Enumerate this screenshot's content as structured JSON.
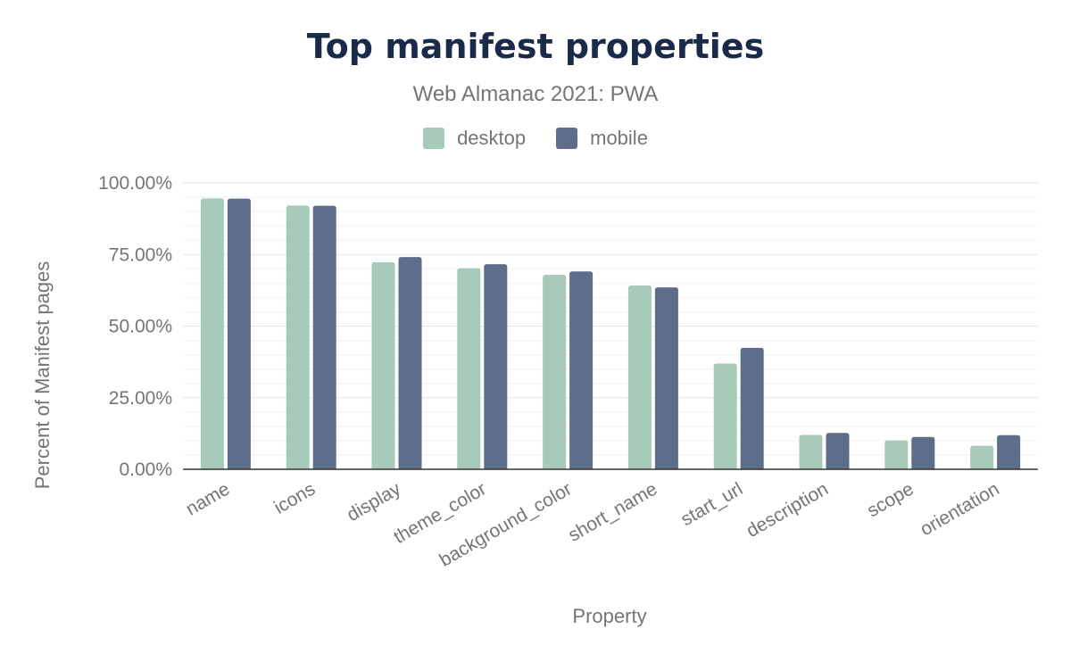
{
  "chart_data": {
    "type": "bar",
    "title": "Top manifest properties",
    "subtitle": "Web Almanac 2021: PWA",
    "xlabel": "Property",
    "ylabel": "Percent of Manifest pages",
    "ylim": [
      0,
      100
    ],
    "yticks": [
      "0.00%",
      "25.00%",
      "50.00%",
      "75.00%",
      "100.00%"
    ],
    "ytick_values": [
      0,
      25,
      50,
      75,
      100
    ],
    "grid": true,
    "legend_position": "top-center",
    "categories": [
      "name",
      "icons",
      "display",
      "theme_color",
      "background_color",
      "short_name",
      "start_url",
      "description",
      "scope",
      "orientation"
    ],
    "series": [
      {
        "name": "desktop",
        "color": "#a8cabb",
        "values": [
          94.6,
          92.1,
          72.3,
          70.2,
          67.9,
          64.2,
          36.9,
          12.0,
          10.1,
          8.2
        ]
      },
      {
        "name": "mobile",
        "color": "#5e6d8a",
        "values": [
          94.5,
          92.0,
          74.1,
          71.6,
          69.1,
          63.5,
          42.4,
          12.7,
          11.3,
          11.9
        ]
      }
    ]
  }
}
